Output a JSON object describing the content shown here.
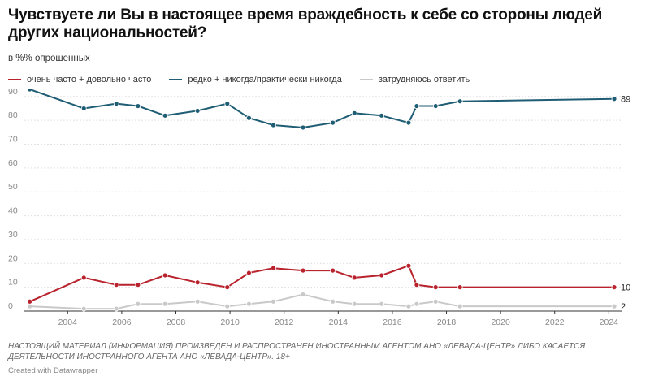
{
  "title": "Чувствуете ли Вы в настоящее время враждебность к себе со стороны людей других национальностей?",
  "subtitle": "в %% опрошенных",
  "notes": "НАСТОЯЩИЙ МАТЕРИАЛ (ИНФОРМАЦИЯ) ПРОИЗВЕДЕН И РАСПРОСТРАНЕН ИНОСТРАННЫМ АГЕНТОМ АНО «ЛЕВАДА-ЦЕНТР» ЛИБО КАСАЕТСЯ ДЕЯТЕЛЬНОСТИ ИНОСТРАННОГО АГЕНТА АНО «ЛЕВАДА-ЦЕНТР». 18+",
  "credit": "Created with Datawrapper",
  "chart_data": {
    "type": "line",
    "title": "Чувствуете ли Вы в настоящее время враждебность к себе со стороны людей других национальностей?",
    "subtitle": "в %% опрошенных",
    "xlim": [
      2002.4,
      2024.5
    ],
    "ylim": [
      0,
      93
    ],
    "x_ticks": [
      2004,
      2006,
      2008,
      2010,
      2012,
      2014,
      2016,
      2018,
      2020,
      2022,
      2024
    ],
    "y_ticks": [
      0,
      10,
      20,
      30,
      40,
      50,
      60,
      70,
      80,
      90
    ],
    "grid": "horizontal",
    "legend_position": "top",
    "series": [
      {
        "name": "очень часто + довольно часто",
        "color": "#b8232d",
        "end_label": "10",
        "points": [
          [
            2002.6,
            4
          ],
          [
            2004.6,
            14
          ],
          [
            2005.8,
            11
          ],
          [
            2006.6,
            11
          ],
          [
            2007.6,
            15
          ],
          [
            2008.8,
            12
          ],
          [
            2009.9,
            10
          ],
          [
            2010.7,
            16
          ],
          [
            2011.6,
            18
          ],
          [
            2012.7,
            17
          ],
          [
            2013.8,
            17
          ],
          [
            2014.6,
            14
          ],
          [
            2015.6,
            15
          ],
          [
            2016.6,
            19
          ],
          [
            2016.9,
            11
          ],
          [
            2017.6,
            10
          ],
          [
            2018.5,
            10
          ],
          [
            2024.2,
            10
          ]
        ]
      },
      {
        "name": "редко + никогда/практически никогда",
        "color": "#1f5d74",
        "end_label": "89",
        "points": [
          [
            2002.6,
            93
          ],
          [
            2004.6,
            85
          ],
          [
            2005.8,
            87
          ],
          [
            2006.6,
            86
          ],
          [
            2007.6,
            82
          ],
          [
            2008.8,
            84
          ],
          [
            2009.9,
            87
          ],
          [
            2010.7,
            81
          ],
          [
            2011.6,
            78
          ],
          [
            2012.7,
            77
          ],
          [
            2013.8,
            79
          ],
          [
            2014.6,
            83
          ],
          [
            2015.6,
            82
          ],
          [
            2016.6,
            79
          ],
          [
            2016.9,
            86
          ],
          [
            2017.6,
            86
          ],
          [
            2018.5,
            88
          ],
          [
            2024.2,
            89
          ]
        ]
      },
      {
        "name": "затрудняюсь ответить",
        "color": "#c9c9c9",
        "end_label": "2",
        "points": [
          [
            2002.6,
            2
          ],
          [
            2004.6,
            1
          ],
          [
            2005.8,
            1
          ],
          [
            2006.6,
            3
          ],
          [
            2007.6,
            3
          ],
          [
            2008.8,
            4
          ],
          [
            2009.9,
            2
          ],
          [
            2010.7,
            3
          ],
          [
            2011.6,
            4
          ],
          [
            2012.7,
            7
          ],
          [
            2013.8,
            4
          ],
          [
            2014.6,
            3
          ],
          [
            2015.6,
            3
          ],
          [
            2016.6,
            2
          ],
          [
            2016.9,
            3
          ],
          [
            2017.6,
            4
          ],
          [
            2018.5,
            2
          ],
          [
            2024.2,
            2
          ]
        ]
      }
    ]
  }
}
